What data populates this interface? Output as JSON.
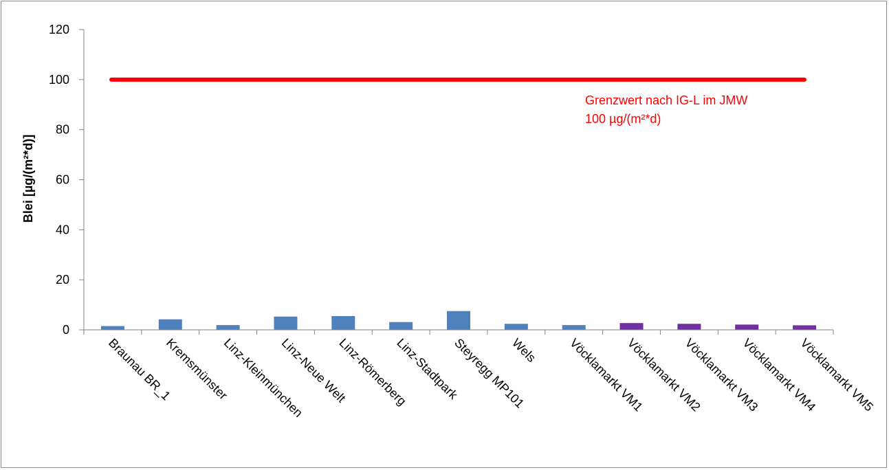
{
  "chart_data": {
    "type": "bar",
    "categories": [
      "Braunau BR_1",
      "Kremsmünster",
      "Linz-Kleinmünchen",
      "Linz-Neue Welt",
      "Linz-Römerberg",
      "Linz-Stadtpark",
      "Steyregg MP101",
      "Wels",
      "Vöcklamarkt VM1",
      "Vöcklamarkt VM2",
      "Vöcklamarkt VM3",
      "Vöcklamarkt VM4",
      "Vöcklamarkt VM5"
    ],
    "values": [
      1.5,
      4.2,
      1.9,
      5.3,
      5.5,
      3.1,
      7.5,
      2.4,
      1.9,
      2.7,
      2.4,
      2.1,
      1.8
    ],
    "bar_colors": [
      "#4f81bd",
      "#4f81bd",
      "#4f81bd",
      "#4f81bd",
      "#4f81bd",
      "#4f81bd",
      "#4f81bd",
      "#4f81bd",
      "#4f81bd",
      "#7030a0",
      "#7030a0",
      "#7030a0",
      "#7030a0"
    ],
    "ylabel": "Blei [µg/(m²*d)]",
    "ylim": [
      0,
      120
    ],
    "yticks": [
      0,
      20,
      40,
      60,
      80,
      100,
      120
    ],
    "grid": false,
    "limit_line": {
      "value": 100,
      "color": "#ff0000",
      "label_line1": "Grenzwert nach IG-L im JMW",
      "label_line2": "100 µg/(m²*d)"
    }
  }
}
